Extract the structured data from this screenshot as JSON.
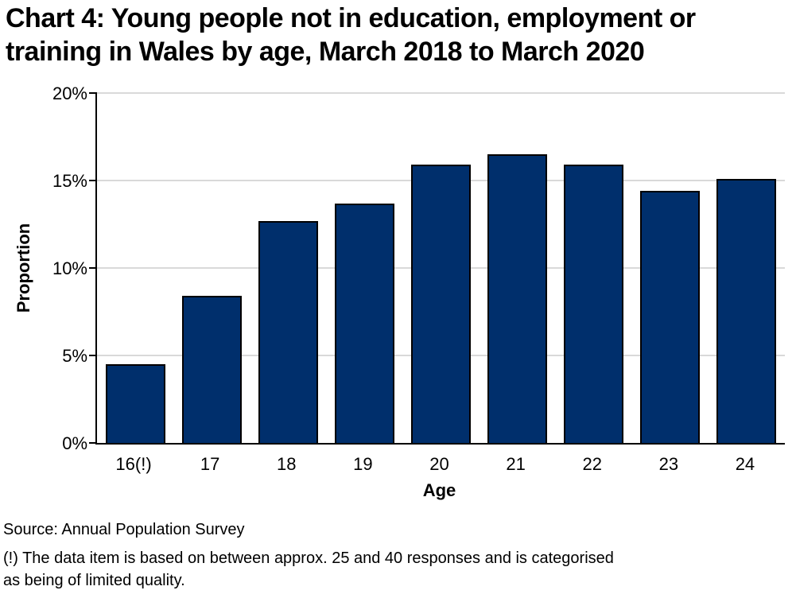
{
  "header": {
    "line1": "Chart 4: Young people not in education, employment or",
    "line2": "training in Wales by age, March 2018 to March 2020"
  },
  "chart_data": {
    "type": "bar",
    "title": "Chart 4: Young people not in education, employment or training in Wales by age, March 2018 to March 2020",
    "categories": [
      "16(!)",
      "17",
      "18",
      "19",
      "20",
      "21",
      "22",
      "23",
      "24"
    ],
    "values": [
      4.5,
      8.4,
      12.7,
      13.7,
      15.9,
      16.5,
      15.9,
      14.4,
      15.1
    ],
    "unit": "%",
    "xlabel": "Age",
    "ylabel": "Proportion",
    "ylim": [
      0,
      20
    ],
    "ytick_step": 5,
    "ytick_labels": [
      "0%",
      "5%",
      "10%",
      "15%",
      "20%"
    ],
    "grid": true,
    "legend": false,
    "colors": {
      "bar_fill": "#002F6C",
      "bar_border": "#000000",
      "gridline": "#D9D9D9",
      "axis": "#000000",
      "text": "#000000",
      "background": "#FFFFFF"
    }
  },
  "footer": {
    "source": "Source: Annual Population Survey",
    "footnote_line1": "(!) The data item is based on between approx. 25 and 40 responses and is categorised",
    "footnote_line2": "as being of limited quality."
  }
}
